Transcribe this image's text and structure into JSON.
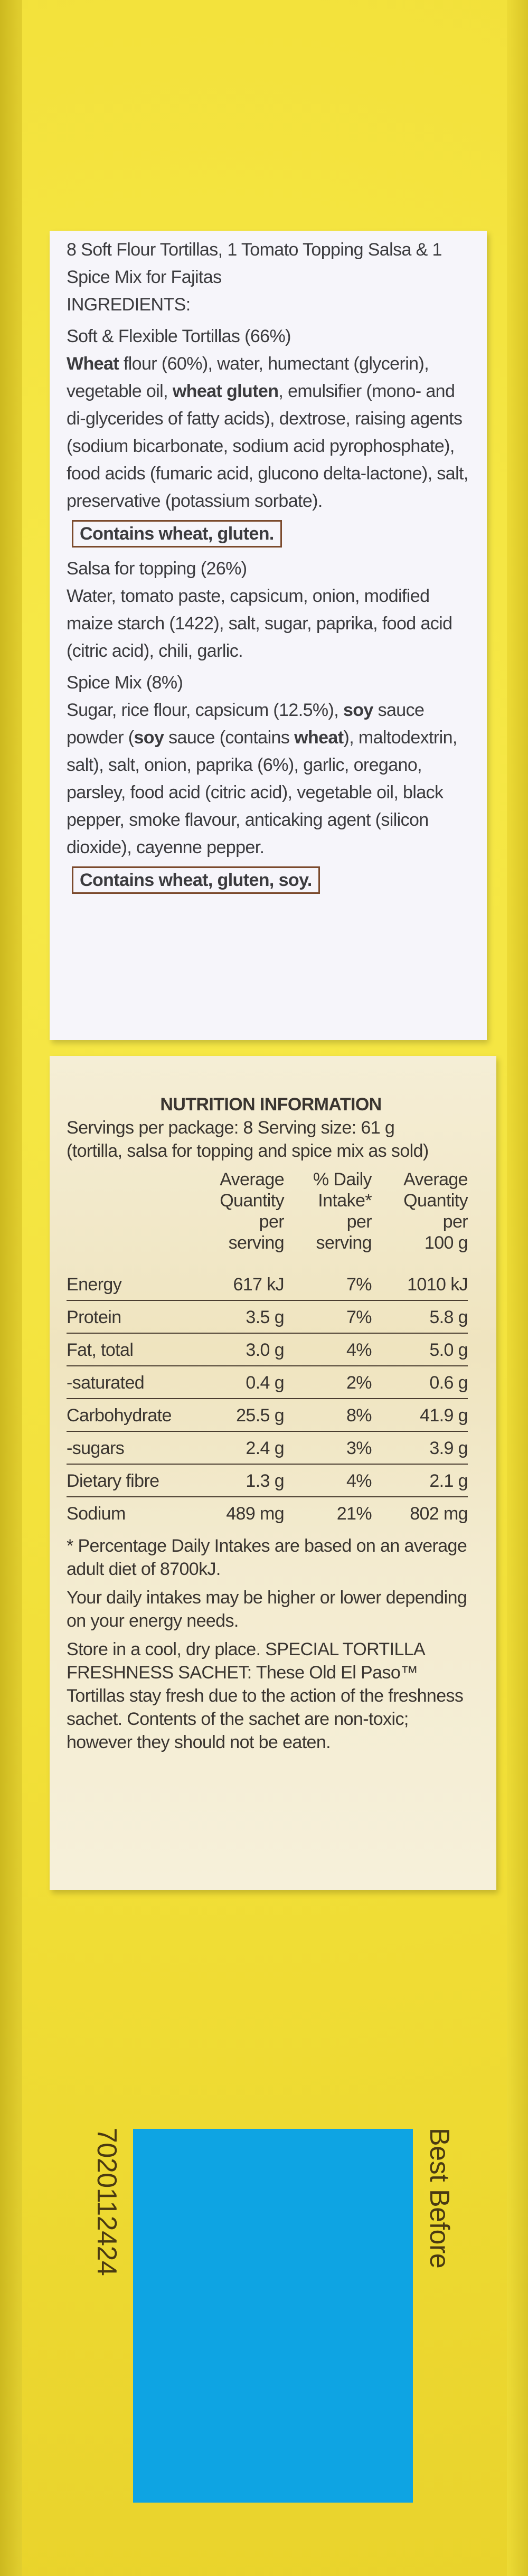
{
  "ingredients": {
    "title": "8 Soft Flour Tortillas, 1 Tomato Topping Salsa & 1 Spice Mix for Fajitas",
    "heading": "INGREDIENTS:",
    "sections": [
      {
        "name": "Soft & Flexible Tortillas (66%)",
        "runs": [
          {
            "text": "Wheat",
            "bold": true
          },
          {
            "text": " flour (60%), water, humectant (glycerin), vegetable oil, ",
            "bold": false
          },
          {
            "text": "wheat gluten",
            "bold": true
          },
          {
            "text": ", emulsifier (mono- and di-glycerides of fatty acids), dextrose, raising agents (sodium bicarbonate, sodium acid pyrophosphate), food acids (fumaric acid, glucono delta-lactone), salt, preservative (potassium sorbate).",
            "bold": false
          }
        ],
        "allergens": "Contains wheat, gluten."
      },
      {
        "name": "Salsa for topping (26%)",
        "runs": [
          {
            "text": "Water, tomato paste, capsicum, onion, modified maize starch (1422), salt, sugar, paprika, food acid (citric acid), chili, garlic.",
            "bold": false
          }
        ]
      },
      {
        "name": "Spice Mix (8%)",
        "runs": [
          {
            "text": "Sugar, rice flour, capsicum (12.5%), ",
            "bold": false
          },
          {
            "text": "soy",
            "bold": true
          },
          {
            "text": " sauce powder (",
            "bold": false
          },
          {
            "text": "soy",
            "bold": true
          },
          {
            "text": " sauce (contains ",
            "bold": false
          },
          {
            "text": "wheat",
            "bold": true
          },
          {
            "text": "), maltodextrin, salt), salt, onion, paprika (6%), garlic, oregano, parsley, food acid (citric acid), vegetable oil, black pepper, smoke flavour, anticaking agent (silicon dioxide), cayenne pepper.",
            "bold": false
          }
        ],
        "allergens": "Contains wheat, gluten, soy."
      }
    ]
  },
  "nutrition": {
    "title": "NUTRITION INFORMATION",
    "servings": "Servings per package: 8 Serving size: 61 g",
    "note": "(tortilla, salsa for topping and spice mix as sold)",
    "columns": [
      [
        "Average",
        "Quantity",
        "per",
        "serving"
      ],
      [
        "% Daily",
        "Intake*",
        "per",
        "serving"
      ],
      [
        "Average",
        "Quantity",
        "per",
        "100 g"
      ]
    ],
    "rows": [
      [
        "Energy",
        "617 kJ",
        "7%",
        "1010 kJ"
      ],
      [
        "Protein",
        "3.5 g",
        "7%",
        "5.8 g"
      ],
      [
        "Fat, total",
        "3.0 g",
        "4%",
        "5.0 g"
      ],
      [
        "-saturated",
        "0.4 g",
        "2%",
        "0.6 g"
      ],
      [
        "Carbohydrate",
        "25.5 g",
        "8%",
        "41.9 g"
      ],
      [
        "-sugars",
        "2.4 g",
        "3%",
        "3.9 g"
      ],
      [
        "Dietary fibre",
        "1.3 g",
        "4%",
        "2.1 g"
      ],
      [
        "Sodium",
        "489 mg",
        "21%",
        "802 mg"
      ]
    ],
    "footnotes": [
      "* Percentage Daily Intakes are based on an average adult diet of 8700kJ.",
      "Your daily intakes may be higher or lower depending on your energy needs.",
      "Store in a cool, dry place. SPECIAL TORTILLA FRESHNESS SACHET: These Old El Paso™ Tortillas stay fresh due to the action of the freshness sachet. Contents of the sachet are non-toxic; however they should not be eaten."
    ]
  },
  "batch_code": "7020112424",
  "best_before": "Best Before"
}
